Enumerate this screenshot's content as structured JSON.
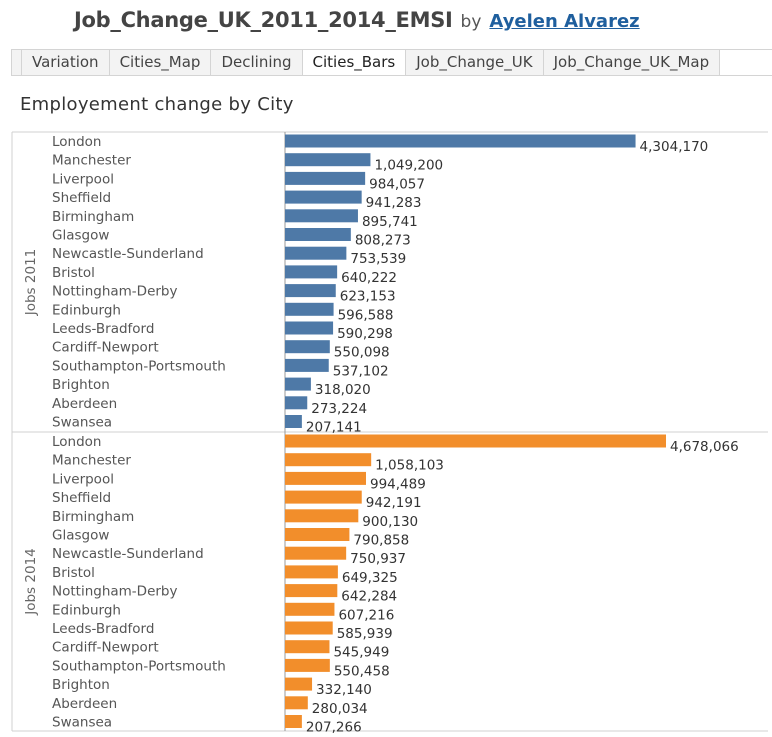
{
  "header": {
    "workbook_title": "Job_Change_UK_2011_2014_EMSI",
    "by_text": "by",
    "author": "Ayelen Alvarez"
  },
  "tabs": [
    {
      "label": "Variation",
      "active": false
    },
    {
      "label": "Cities_Map",
      "active": false
    },
    {
      "label": "Declining",
      "active": false
    },
    {
      "label": "Cities_Bars",
      "active": true
    },
    {
      "label": "Job_Change_UK",
      "active": false
    },
    {
      "label": "Job_Change_UK_Map",
      "active": false
    }
  ],
  "chart_title": "Employement change by City",
  "colors": {
    "jobs_2011": "#4e79a7",
    "jobs_2014": "#f28e2b",
    "grid": "#d0d0d0",
    "axis": "#999999"
  },
  "chart_data": {
    "type": "bar",
    "orientation": "horizontal",
    "categories": [
      "London",
      "Manchester",
      "Liverpool",
      "Sheffield",
      "Birmingham",
      "Glasgow",
      "Newcastle-Sunderland",
      "Bristol",
      "Nottingham-Derby",
      "Edinburgh",
      "Leeds-Bradford",
      "Cardiff-Newport",
      "Southampton-Portsmouth",
      "Brighton",
      "Aberdeen",
      "Swansea"
    ],
    "series": [
      {
        "name": "Jobs 2011",
        "categories": [
          "London",
          "Manchester",
          "Liverpool",
          "Sheffield",
          "Birmingham",
          "Glasgow",
          "Newcastle-Sunderland",
          "Bristol",
          "Nottingham-Derby",
          "Edinburgh",
          "Leeds-Bradford",
          "Cardiff-Newport",
          "Southampton-Portsmouth",
          "Brighton",
          "Aberdeen",
          "Swansea"
        ],
        "values": [
          4304170,
          1049200,
          984057,
          941283,
          895741,
          808273,
          753539,
          640222,
          623153,
          596588,
          590298,
          550098,
          537102,
          318020,
          273224,
          207141
        ],
        "labels": [
          "4,304,170",
          "1,049,200",
          "984,057",
          "941,283",
          "895,741",
          "808,273",
          "753,539",
          "640,222",
          "623,153",
          "596,588",
          "590,298",
          "550,098",
          "537,102",
          "318,020",
          "273,224",
          "207,141"
        ]
      },
      {
        "name": "Jobs 2014",
        "categories": [
          "London",
          "Manchester",
          "Liverpool",
          "Sheffield",
          "Birmingham",
          "Glasgow",
          "Newcastle-Sunderland",
          "Bristol",
          "Nottingham-Derby",
          "Edinburgh",
          "Leeds-Bradford",
          "Cardiff-Newport",
          "Southampton-Portsmouth",
          "Brighton",
          "Aberdeen",
          "Swansea"
        ],
        "values": [
          4678066,
          1058103,
          994489,
          942191,
          900130,
          790858,
          750937,
          649325,
          642284,
          607216,
          585939,
          545949,
          550458,
          332140,
          280034,
          207266
        ],
        "labels": [
          "4,678,066",
          "1,058,103",
          "994,489",
          "942,191",
          "900,130",
          "790,858",
          "750,937",
          "649,325",
          "642,284",
          "607,216",
          "585,939",
          "545,949",
          "550,458",
          "332,140",
          "280,034",
          "207,266"
        ]
      }
    ],
    "xlim": [
      0,
      4678066
    ],
    "grid": false,
    "legend": "none"
  }
}
